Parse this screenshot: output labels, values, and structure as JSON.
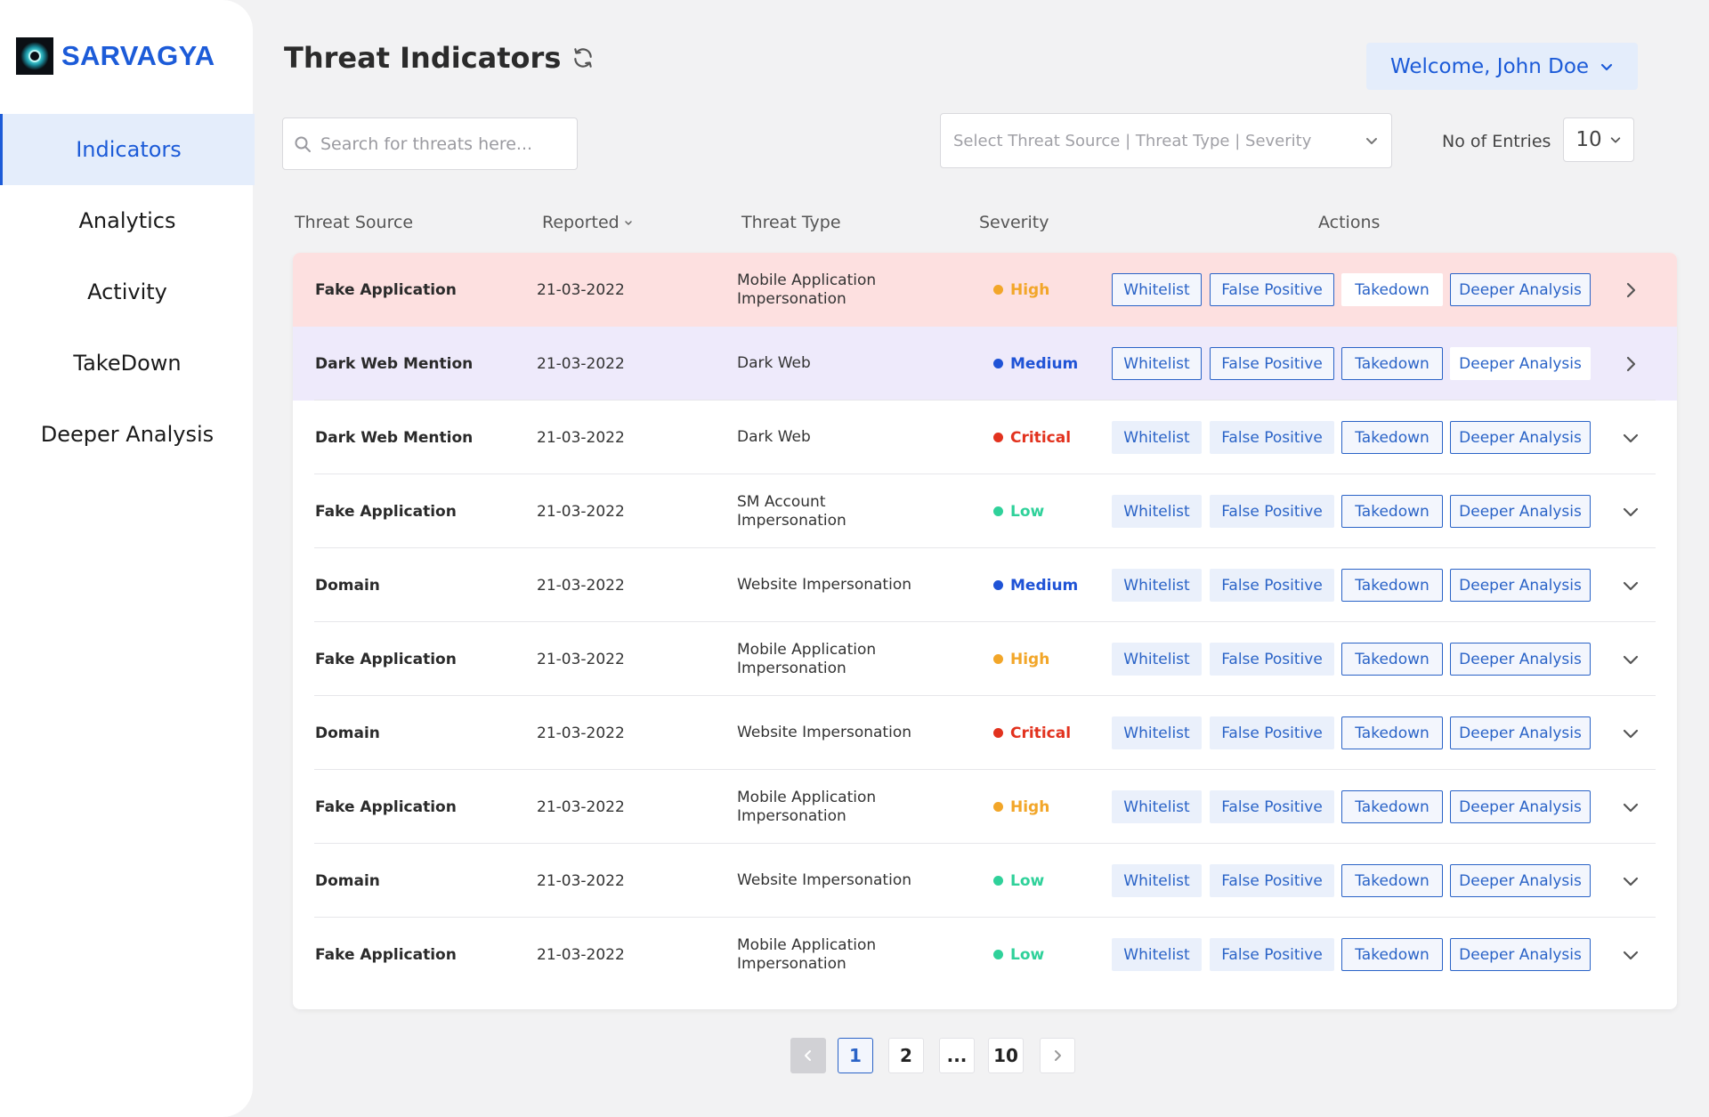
{
  "brand": {
    "name": "SARVAGYA"
  },
  "sidebar": {
    "items": [
      {
        "label": "Indicators",
        "active": true
      },
      {
        "label": "Analytics"
      },
      {
        "label": "Activity"
      },
      {
        "label": "TakeDown"
      },
      {
        "label": "Deeper Analysis"
      }
    ]
  },
  "header": {
    "title": "Threat Indicators",
    "welcome": "Welcome, John Doe"
  },
  "search": {
    "placeholder": "Search for threats here..."
  },
  "filter": {
    "placeholder": "Select Threat Source |  Threat Type | Severity"
  },
  "entries": {
    "label": "No of Entries",
    "value": "10"
  },
  "table": {
    "headers": {
      "source": "Threat Source",
      "reported": "Reported",
      "type": "Threat Type",
      "severity": "Severity",
      "actions": "Actions"
    },
    "actions": {
      "whitelist": "Whitelist",
      "false_positive": "False Positive",
      "takedown": "Takedown",
      "deeper": "Deeper Analysis"
    },
    "rows": [
      {
        "source": "Fake Application",
        "reported": "21-03-2022",
        "type": "Mobile Application Impersonation",
        "severity": "High"
      },
      {
        "source": "Dark Web Mention",
        "reported": "21-03-2022",
        "type": "Dark Web",
        "severity": "Medium"
      },
      {
        "source": "Dark Web Mention",
        "reported": "21-03-2022",
        "type": "Dark Web",
        "severity": "Critical"
      },
      {
        "source": "Fake Application",
        "reported": "21-03-2022",
        "type": "SM Account Impersonation",
        "severity": "Low"
      },
      {
        "source": "Domain",
        "reported": "21-03-2022",
        "type": "Website Impersonation",
        "severity": "Medium"
      },
      {
        "source": "Fake Application",
        "reported": "21-03-2022",
        "type": "Mobile Application Impersonation",
        "severity": "High"
      },
      {
        "source": "Domain",
        "reported": "21-03-2022",
        "type": "Website Impersonation",
        "severity": "Critical"
      },
      {
        "source": "Fake Application",
        "reported": "21-03-2022",
        "type": "Mobile Application Impersonation",
        "severity": "High"
      },
      {
        "source": "Domain",
        "reported": "21-03-2022",
        "type": "Website Impersonation",
        "severity": "Low"
      },
      {
        "source": "Fake Application",
        "reported": "21-03-2022",
        "type": "Mobile Application Impersonation",
        "severity": "Low"
      }
    ]
  },
  "severity_colors": {
    "High": "#f2a629",
    "Medium": "#1f53d6",
    "Critical": "#e2321e",
    "Low": "#2fd19a"
  },
  "pagination": {
    "pages": [
      "1",
      "2",
      "...",
      "10"
    ],
    "current": "1"
  }
}
